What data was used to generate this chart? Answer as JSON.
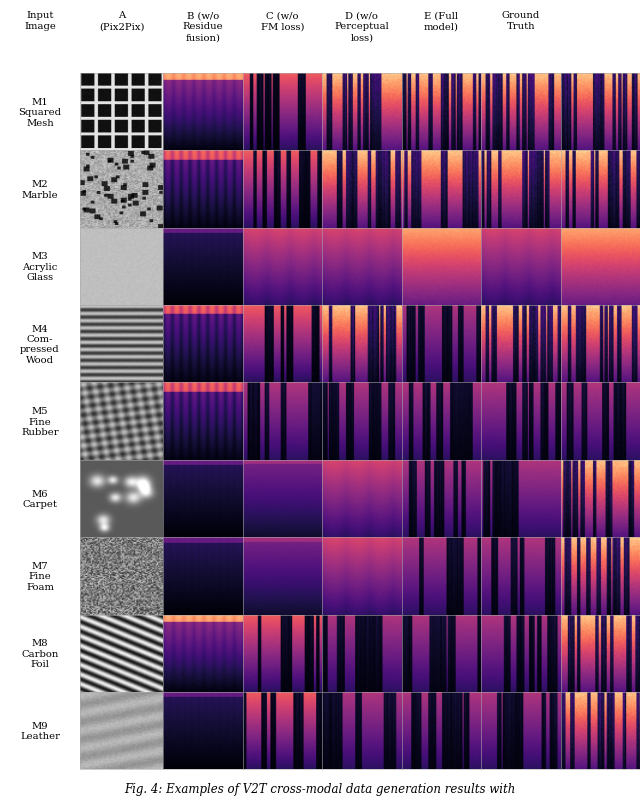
{
  "col_headers": [
    "Input\nImage",
    "A\n(Pix2Pix)",
    "B (w/o\nResidue\nfusion)",
    "C (w/o\nFM loss)",
    "D (w/o\nPerceptual\nloss)",
    "E (Full\nmodel)",
    "Ground\nTruth"
  ],
  "row_labels": [
    "M1\nSquared\nMesh",
    "M2\nMarble",
    "M3\nAcrylic\nGlass",
    "M4\nCom-\npressed\nWood",
    "M5\nFine\nRubber",
    "M6\nCarpet",
    "M7\nFine\nFoam",
    "M8\nCarbon\nFoil",
    "M9\nLeather"
  ],
  "n_rows": 9,
  "n_cols": 7,
  "caption": "Fig. 4: Examples of V2T cross-modal data generation results with",
  "fig_width": 6.4,
  "fig_height": 8.04,
  "header_fontsize": 7.2,
  "label_fontsize": 7.2,
  "caption_fontsize": 8.5
}
